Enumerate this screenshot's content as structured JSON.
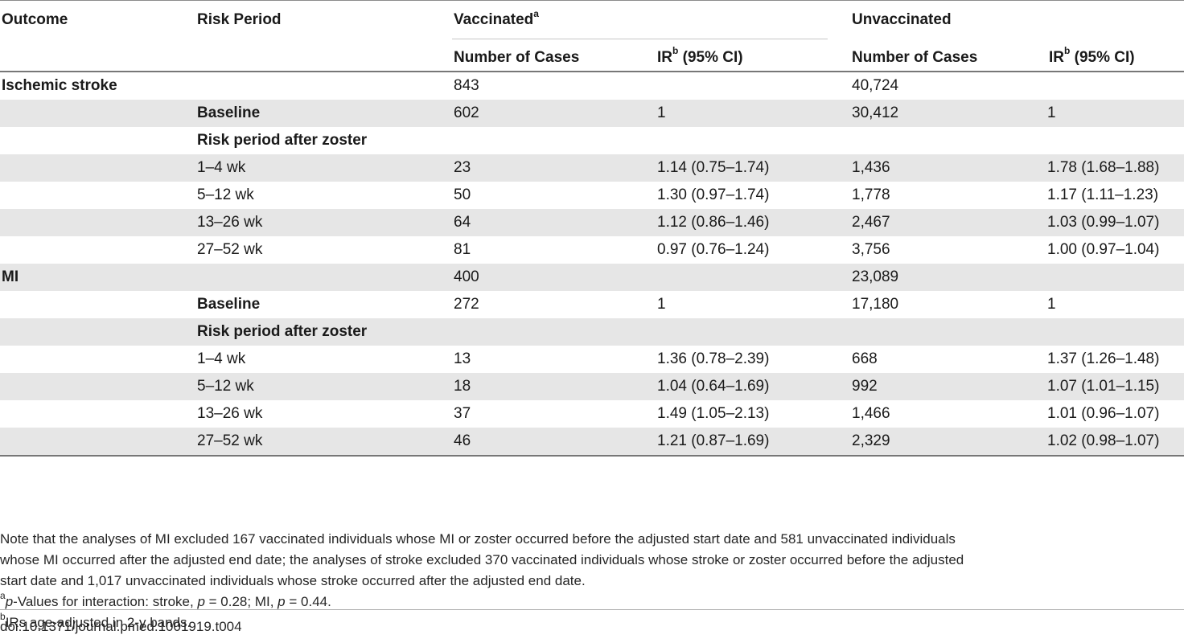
{
  "header": {
    "outcome": "Outcome",
    "risk_period": "Risk Period",
    "vaccinated": "Vaccinated",
    "vaccinated_sup": "a",
    "unvaccinated": "Unvaccinated",
    "number_of_cases": "Number of Cases",
    "ir_prefix": "IR",
    "ir_sup": "b",
    "ir_suffix": " (95% CI)"
  },
  "rows": [
    {
      "outcome": "Ischemic stroke",
      "period": "",
      "vac_n": "843",
      "vac_ir": "",
      "unvac_n": "40,724",
      "unvac_ir": ""
    },
    {
      "outcome": "",
      "period": "Baseline",
      "vac_n": "602",
      "vac_ir": "1",
      "unvac_n": "30,412",
      "unvac_ir": "1"
    },
    {
      "outcome": "",
      "period": "Risk period after zoster",
      "vac_n": "",
      "vac_ir": "",
      "unvac_n": "",
      "unvac_ir": ""
    },
    {
      "outcome": "",
      "period": "1–4 wk",
      "vac_n": "23",
      "vac_ir": "1.14 (0.75–1.74)",
      "unvac_n": "1,436",
      "unvac_ir": "1.78 (1.68–1.88)"
    },
    {
      "outcome": "",
      "period": "5–12 wk",
      "vac_n": "50",
      "vac_ir": "1.30 (0.97–1.74)",
      "unvac_n": "1,778",
      "unvac_ir": "1.17 (1.11–1.23)"
    },
    {
      "outcome": "",
      "period": "13–26 wk",
      "vac_n": "64",
      "vac_ir": "1.12 (0.86–1.46)",
      "unvac_n": "2,467",
      "unvac_ir": "1.03 (0.99–1.07)"
    },
    {
      "outcome": "",
      "period": "27–52 wk",
      "vac_n": "81",
      "vac_ir": "0.97 (0.76–1.24)",
      "unvac_n": "3,756",
      "unvac_ir": "1.00 (0.97–1.04)"
    },
    {
      "outcome": "MI",
      "period": "",
      "vac_n": "400",
      "vac_ir": "",
      "unvac_n": "23,089",
      "unvac_ir": ""
    },
    {
      "outcome": "",
      "period": "Baseline",
      "vac_n": "272",
      "vac_ir": "1",
      "unvac_n": "17,180",
      "unvac_ir": "1"
    },
    {
      "outcome": "",
      "period": "Risk period after zoster",
      "vac_n": "",
      "vac_ir": "",
      "unvac_n": "",
      "unvac_ir": ""
    },
    {
      "outcome": "",
      "period": "1–4 wk",
      "vac_n": "13",
      "vac_ir": "1.36 (0.78–2.39)",
      "unvac_n": "668",
      "unvac_ir": "1.37 (1.26–1.48)"
    },
    {
      "outcome": "",
      "period": "5–12 wk",
      "vac_n": "18",
      "vac_ir": "1.04 (0.64–1.69)",
      "unvac_n": "992",
      "unvac_ir": "1.07 (1.01–1.15)"
    },
    {
      "outcome": "",
      "period": "13–26 wk",
      "vac_n": "37",
      "vac_ir": "1.49 (1.05–2.13)",
      "unvac_n": "1,466",
      "unvac_ir": "1.01 (0.96–1.07)"
    },
    {
      "outcome": "",
      "period": "27–52 wk",
      "vac_n": "46",
      "vac_ir": "1.21 (0.87–1.69)",
      "unvac_n": "2,329",
      "unvac_ir": "1.02 (0.98–1.07)"
    }
  ],
  "notes": {
    "main": "Note that the analyses of MI excluded 167 vaccinated individuals whose MI or zoster occurred before the adjusted start date and 581 unvaccinated individuals whose MI occurred after the adjusted end date; the analyses of stroke excluded 370 vaccinated individuals whose stroke or zoster occurred before the adjusted start date and 1,017 unvaccinated individuals whose stroke occurred after the adjusted end date.",
    "a_sup": "a",
    "a_p": "p",
    "a_text1": "-Values for interaction: stroke, ",
    "a_p2": "p",
    "a_text2": " = 0.28; MI, ",
    "a_p3": "p",
    "a_text3": " = 0.44.",
    "b_sup": "b",
    "b_text": "IRs age-adjusted in 2-y bands."
  },
  "doi": "doi:10.1371/journal.pmed.1001919.t004"
}
